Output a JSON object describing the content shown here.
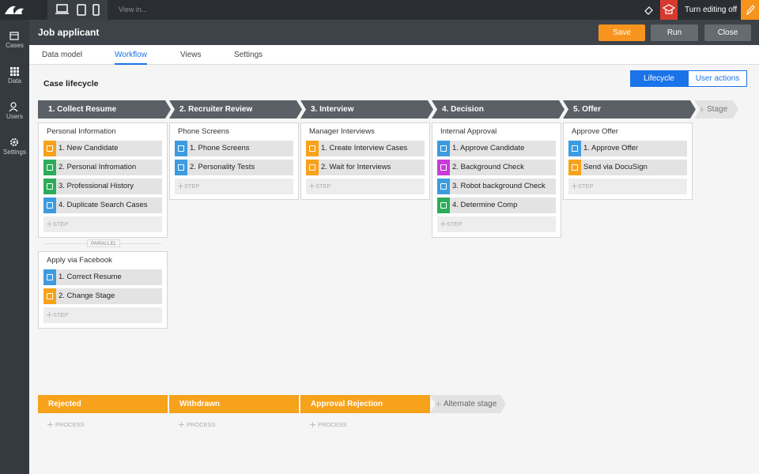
{
  "topbar": {
    "view_in": "View in...",
    "turn_editing_off": "Turn editing off"
  },
  "sidebar": [
    "Cases",
    "Data",
    "Users",
    "Settings"
  ],
  "header": {
    "title": "Job applicant",
    "buttons": [
      {
        "label": "Save",
        "color": "#f7941d"
      },
      {
        "label": "Run",
        "color": "#666b71"
      },
      {
        "label": "Close",
        "color": "#666b71"
      }
    ]
  },
  "tabs": [
    {
      "label": "Data model",
      "active": false
    },
    {
      "label": "Workflow",
      "active": true
    },
    {
      "label": "Views",
      "active": false
    },
    {
      "label": "Settings",
      "active": false
    }
  ],
  "lifecycle": {
    "title": "Case lifecycle",
    "toggle": [
      {
        "label": "Lifecycle",
        "active": true
      },
      {
        "label": "User actions",
        "active": false
      }
    ],
    "parallel": "PARALLEL",
    "add_step": "STEP",
    "add_stage": "Stage",
    "stages": [
      {
        "name": "1. Collect Resume",
        "processes": [
          {
            "name": "Personal Information",
            "steps": [
              {
                "label": "1. New Candidate",
                "color": "#f7a21b"
              },
              {
                "label": "2. Personal Infromation",
                "color": "#2eac5a"
              },
              {
                "label": "3. Professional History",
                "color": "#2eac5a"
              },
              {
                "label": "4. Duplicate Search Cases",
                "color": "#3d9be0"
              }
            ]
          },
          {
            "name": "Apply via Facebook",
            "steps": [
              {
                "label": "1. Correct Resume",
                "color": "#3d9be0"
              },
              {
                "label": "2. Change Stage",
                "color": "#f7a21b"
              }
            ]
          }
        ]
      },
      {
        "name": "2. Recruiter Review",
        "processes": [
          {
            "name": "Phone Screens",
            "steps": [
              {
                "label": "1. Phone Screens",
                "color": "#3d9be0"
              },
              {
                "label": "2. Personality Tests",
                "color": "#3d9be0"
              }
            ]
          }
        ]
      },
      {
        "name": "3. Interview",
        "processes": [
          {
            "name": "Manager Interviews",
            "steps": [
              {
                "label": "1. Create Interview Cases",
                "color": "#f7a21b"
              },
              {
                "label": "2. Wait for Interviews",
                "color": "#f7a21b"
              }
            ]
          }
        ]
      },
      {
        "name": "4. Decision",
        "processes": [
          {
            "name": "Internal Approval",
            "steps": [
              {
                "label": "1. Approve Candidate",
                "color": "#3d9be0"
              },
              {
                "label": "2. Background Check",
                "color": "#c93ad8"
              },
              {
                "label": "3. Robot background Check",
                "color": "#3d9be0"
              },
              {
                "label": "4. Determine Comp",
                "color": "#2eac5a"
              }
            ]
          }
        ]
      },
      {
        "name": "5. Offer",
        "processes": [
          {
            "name": "Approve Offer",
            "steps": [
              {
                "label": "1. Approve Offer",
                "color": "#3d9be0"
              },
              {
                "label": "Send via DocuSign",
                "color": "#f7a21b"
              }
            ]
          }
        ]
      }
    ],
    "alternate_stages": [
      {
        "name": "Rejected",
        "color": "#f7a21b"
      },
      {
        "name": "Withdrawn",
        "color": "#f7a21b"
      },
      {
        "name": "Approval Rejection",
        "color": "#f7a21b"
      }
    ],
    "add_process": "PROCESS",
    "add_alternate_stage": "Alternate stage"
  }
}
